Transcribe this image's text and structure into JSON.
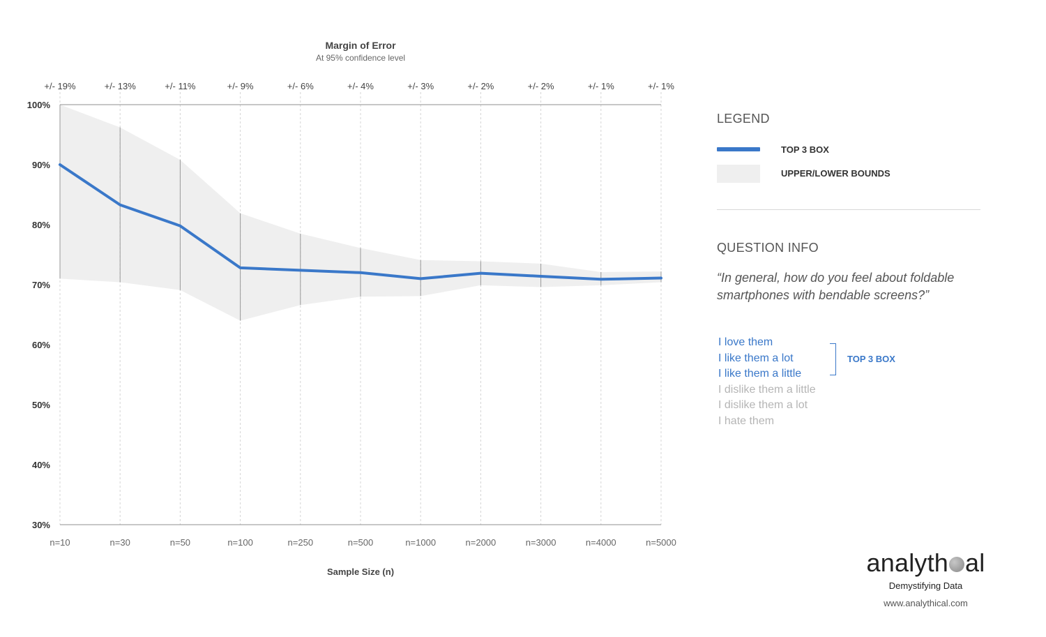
{
  "chart_data": {
    "type": "line",
    "title": "Margin of Error",
    "subtitle": "At 95% confidence level",
    "xlabel": "Sample Size (n)",
    "ylabel": "",
    "categories": [
      "n=10",
      "n=30",
      "n=50",
      "n=100",
      "n=250",
      "n=500",
      "n=1000",
      "n=2000",
      "n=3000",
      "n=4000",
      "n=5000"
    ],
    "top_axis_labels": [
      "+/- 19%",
      "+/- 13%",
      "+/- 11%",
      "+/- 9%",
      "+/- 6%",
      "+/- 4%",
      "+/- 3%",
      "+/- 2%",
      "+/- 2%",
      "+/- 1%",
      "+/- 1%"
    ],
    "y_ticks": [
      30,
      40,
      50,
      60,
      70,
      80,
      90,
      100
    ],
    "y_tick_labels": [
      "30%",
      "40%",
      "50%",
      "60%",
      "70%",
      "80%",
      "90%",
      "100%"
    ],
    "ylim": [
      30,
      100
    ],
    "series": [
      {
        "name": "TOP 3 BOX",
        "color": "#3a78c9",
        "values": [
          90,
          83.3,
          79.8,
          72.8,
          72.4,
          72,
          71,
          71.9,
          71.4,
          70.9,
          71.1
        ]
      }
    ],
    "bounds": {
      "name": "UPPER/LOWER BOUNDS",
      "color": "#efefef",
      "upper": [
        100,
        96.2,
        90.8,
        81.9,
        78.5,
        76.1,
        74.1,
        73.9,
        73.5,
        72.1,
        72.2
      ],
      "lower": [
        71,
        70.4,
        69.1,
        64,
        66.6,
        68,
        68.1,
        69.9,
        69.6,
        69.9,
        70.4
      ]
    },
    "grid": true
  },
  "legend": {
    "title": "LEGEND",
    "line_label": "TOP 3 BOX",
    "band_label": "UPPER/LOWER BOUNDS"
  },
  "question": {
    "title": "QUESTION INFO",
    "text": "“In general, how do you feel about foldable smartphones with bendable screens?”",
    "answers_top": [
      "I love them",
      "I like them a lot",
      "I like them a little"
    ],
    "answers_other": [
      "I dislike them a little",
      "I dislike them a lot",
      "I hate them"
    ],
    "bracket_label": "TOP 3 BOX"
  },
  "brand": {
    "logo_before": "analyth",
    "logo_after": "al",
    "tagline": "Demystifying Data",
    "url": "www.analythical.com"
  }
}
